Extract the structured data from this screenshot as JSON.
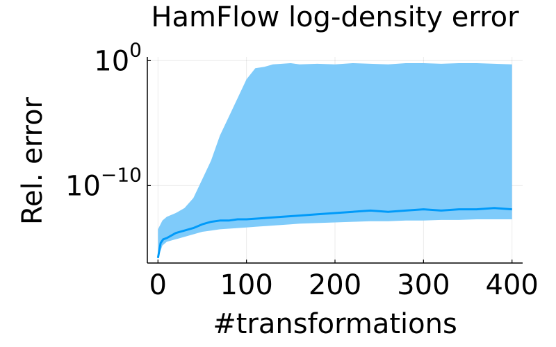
{
  "chart_data": {
    "type": "area",
    "title": "HamFlow log-density error",
    "xlabel": "#transformations",
    "ylabel": "Rel. error",
    "xlim": [
      -12,
      412
    ],
    "ylim_log10": [
      -16.2,
      0.3
    ],
    "y_scale": "log",
    "grid": true,
    "legend": "none",
    "x_ticks": [
      0,
      100,
      200,
      300,
      400
    ],
    "x_tick_labels": [
      "0",
      "100",
      "200",
      "300",
      "400"
    ],
    "y_ticks_log10": [
      0,
      -10
    ],
    "y_tick_labels": [
      {
        "base": "10",
        "exp": "0"
      },
      {
        "base": "10",
        "exp": "−10"
      }
    ],
    "color": "#009af9",
    "band_color": "#7fcbfa",
    "series": [
      {
        "kind": "band",
        "x": [
          0,
          5,
          10,
          20,
          30,
          40,
          50,
          60,
          70,
          80,
          90,
          100,
          110,
          120,
          130,
          140,
          150,
          160,
          180,
          200,
          220,
          240,
          260,
          280,
          300,
          320,
          340,
          360,
          380,
          400
        ],
        "upper_log10": [
          -13.5,
          -12.8,
          -12.5,
          -12.2,
          -11.8,
          -11.0,
          -9.5,
          -8.0,
          -6.0,
          -4.5,
          -3.0,
          -1.5,
          -0.6,
          -0.5,
          -0.3,
          -0.25,
          -0.2,
          -0.3,
          -0.25,
          -0.3,
          -0.2,
          -0.25,
          -0.3,
          -0.2,
          -0.2,
          -0.25,
          -0.2,
          -0.2,
          -0.25,
          -0.3
        ],
        "lower_log10": [
          -15.8,
          -14.8,
          -14.5,
          -14.3,
          -14.1,
          -13.9,
          -13.7,
          -13.6,
          -13.5,
          -13.45,
          -13.4,
          -13.35,
          -13.3,
          -13.25,
          -13.2,
          -13.15,
          -13.1,
          -13.05,
          -13.0,
          -12.95,
          -12.9,
          -12.85,
          -12.85,
          -12.8,
          -12.8,
          -12.75,
          -12.75,
          -12.7,
          -12.7,
          -12.7
        ]
      },
      {
        "kind": "line",
        "x": [
          0,
          3,
          6,
          10,
          15,
          20,
          30,
          40,
          50,
          60,
          70,
          80,
          90,
          100,
          120,
          140,
          160,
          180,
          200,
          220,
          240,
          260,
          280,
          300,
          320,
          340,
          360,
          380,
          400
        ],
        "y_log10": [
          -15.8,
          -14.6,
          -14.3,
          -14.2,
          -14.0,
          -13.8,
          -13.6,
          -13.4,
          -13.1,
          -12.9,
          -12.8,
          -12.8,
          -12.7,
          -12.7,
          -12.6,
          -12.5,
          -12.4,
          -12.3,
          -12.2,
          -12.1,
          -12.0,
          -12.1,
          -12.0,
          -11.9,
          -12.0,
          -11.9,
          -11.9,
          -11.8,
          -11.9
        ]
      }
    ]
  }
}
